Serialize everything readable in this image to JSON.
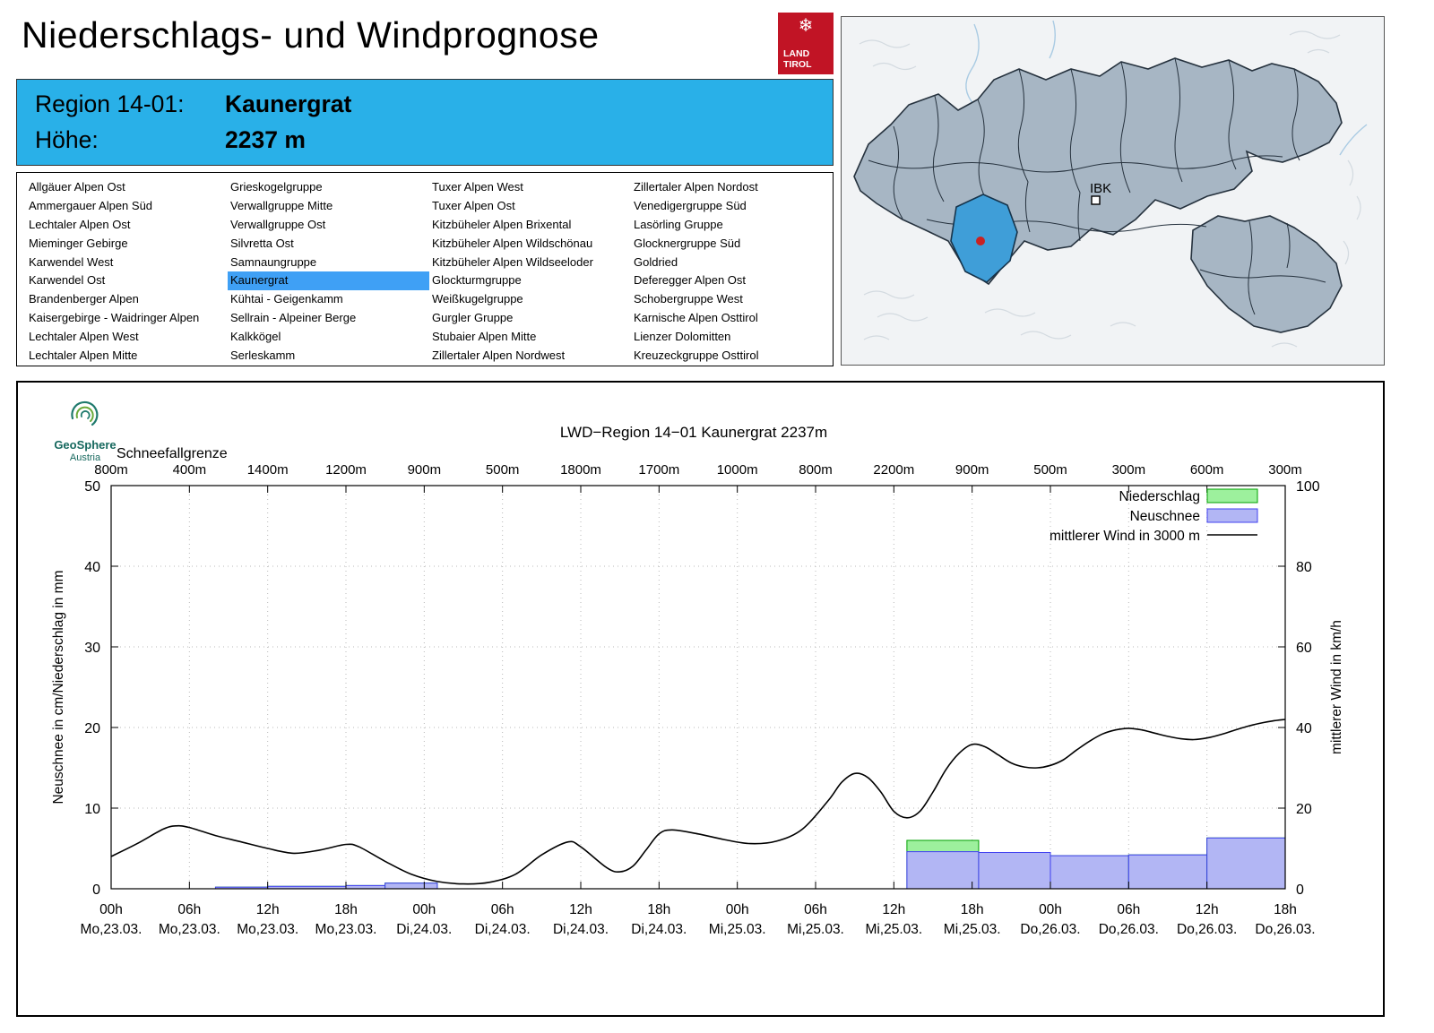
{
  "header": {
    "title": "Niederschlags- und Windprognose",
    "logo_line1": "LAND",
    "logo_line2": "TIROL",
    "logo_color": "#c11425"
  },
  "region_info": {
    "region_label": "Region 14-01:",
    "region_value": "Kaunergrat",
    "elevation_label": "Höhe:",
    "elevation_value": "2237 m",
    "box_color": "#29b0e8"
  },
  "map": {
    "ibk_label": "IBK",
    "selected_region_color": "#3f9ed8",
    "region_fill": "#a7b6c4",
    "marker_color": "#c92222"
  },
  "geosphere": {
    "name": "GeoSphere",
    "country": "Austria"
  },
  "region_list": {
    "selected": "Kaunergrat",
    "selected_color": "#3fa0f5",
    "columns": [
      [
        "Allgäuer Alpen Ost",
        "Ammergauer Alpen Süd",
        "Lechtaler Alpen Ost",
        "Mieminger Gebirge",
        "Karwendel West",
        "Karwendel Ost",
        "Brandenberger Alpen",
        "Kaisergebirge - Waidringer Alpen",
        "Lechtaler Alpen West",
        "Lechtaler Alpen Mitte"
      ],
      [
        "Grieskogelgruppe",
        "Verwallgruppe Mitte",
        "Verwallgruppe Ost",
        "Silvretta Ost",
        "Samnaungruppe",
        "Kaunergrat",
        "Kühtai - Geigenkamm",
        "Sellrain - Alpeiner Berge",
        "Kalkkögel",
        "Serleskamm"
      ],
      [
        "Tuxer Alpen West",
        "Tuxer Alpen Ost",
        "Kitzbüheler Alpen Brixental",
        "Kitzbüheler Alpen Wildschönau",
        "Kitzbüheler Alpen Wildseeloder",
        "Glockturmgruppe",
        "Weißkugelgruppe",
        "Gurgler Gruppe",
        "Stubaier Alpen Mitte",
        "Zillertaler Alpen Nordwest"
      ],
      [
        "Zillertaler Alpen Nordost",
        "Venedigergruppe Süd",
        "Lasörling Gruppe",
        "Glocknergruppe Süd",
        "Goldried",
        "Deferegger Alpen Ost",
        "Schobergruppe West",
        "Karnische Alpen Osttirol",
        "Lienzer Dolomitten",
        "Kreuzeckgruppe Osttirol"
      ]
    ]
  },
  "chart_data": {
    "type": "mixed",
    "title": "LWD−Region 14−01 Kaunergrat 2237m",
    "grid": true,
    "x_hours_range": [
      0,
      90
    ],
    "x_ticks": [
      {
        "time": "00h",
        "date": "Mo,23.03."
      },
      {
        "time": "06h",
        "date": "Mo,23.03."
      },
      {
        "time": "12h",
        "date": "Mo,23.03."
      },
      {
        "time": "18h",
        "date": "Mo,23.03."
      },
      {
        "time": "00h",
        "date": "Di,24.03."
      },
      {
        "time": "06h",
        "date": "Di,24.03."
      },
      {
        "time": "12h",
        "date": "Di,24.03."
      },
      {
        "time": "18h",
        "date": "Di,24.03."
      },
      {
        "time": "00h",
        "date": "Mi,25.03."
      },
      {
        "time": "06h",
        "date": "Mi,25.03."
      },
      {
        "time": "12h",
        "date": "Mi,25.03."
      },
      {
        "time": "18h",
        "date": "Mi,25.03."
      },
      {
        "time": "00h",
        "date": "Do,26.03."
      },
      {
        "time": "06h",
        "date": "Do,26.03."
      },
      {
        "time": "12h",
        "date": "Do,26.03."
      },
      {
        "time": "18h",
        "date": "Do,26.03."
      }
    ],
    "top_axis": {
      "label": "Schneefallgrenze",
      "values": [
        "800m",
        "400m",
        "1400m",
        "1200m",
        "900m",
        "500m",
        "1800m",
        "1700m",
        "1000m",
        "800m",
        "2200m",
        "900m",
        "500m",
        "300m",
        "600m",
        "300m"
      ]
    },
    "axes": {
      "left": {
        "label": "Neuschnee in cm/Niederschlag in mm",
        "min": 0,
        "max": 50,
        "step": 10
      },
      "right": {
        "label": "mittlerer Wind in km/h",
        "min": 0,
        "max": 100,
        "step": 20
      }
    },
    "legend": [
      {
        "label": "Niederschlag",
        "type": "box",
        "fill": "#9df09d",
        "stroke": "#00a000"
      },
      {
        "label": "Neuschnee",
        "type": "box",
        "fill": "#b2b6f4",
        "stroke": "#4040f0"
      },
      {
        "label": "mittlerer Wind in 3000 m",
        "type": "line",
        "stroke": "#000000"
      }
    ],
    "bars": [
      {
        "from_h": 8,
        "to_h": 12,
        "niederschlag_mm": 0.2,
        "neuschnee_cm": 0.2
      },
      {
        "from_h": 12,
        "to_h": 18,
        "niederschlag_mm": 0.3,
        "neuschnee_cm": 0.3
      },
      {
        "from_h": 18,
        "to_h": 21,
        "niederschlag_mm": 0.4,
        "neuschnee_cm": 0.4
      },
      {
        "from_h": 21,
        "to_h": 25,
        "niederschlag_mm": 0.7,
        "neuschnee_cm": 0.7
      },
      {
        "from_h": 61,
        "to_h": 66.5,
        "niederschlag_mm": 6.0,
        "neuschnee_cm": 4.6
      },
      {
        "from_h": 66.5,
        "to_h": 72,
        "niederschlag_mm": 4.5,
        "neuschnee_cm": 4.5
      },
      {
        "from_h": 72,
        "to_h": 78,
        "niederschlag_mm": 4.1,
        "neuschnee_cm": 4.1
      },
      {
        "from_h": 78,
        "to_h": 84,
        "niederschlag_mm": 4.2,
        "neuschnee_cm": 4.2
      },
      {
        "from_h": 84,
        "to_h": 90,
        "niederschlag_mm": 6.3,
        "neuschnee_cm": 6.3
      }
    ],
    "wind_kmh": {
      "name": "mittlerer Wind in 3000 m",
      "points": [
        [
          0,
          8.0
        ],
        [
          2,
          11.2
        ],
        [
          4,
          14.8
        ],
        [
          5,
          15.6
        ],
        [
          6,
          15.2
        ],
        [
          8,
          13.2
        ],
        [
          10,
          11.6
        ],
        [
          12,
          10.0
        ],
        [
          14,
          8.8
        ],
        [
          16,
          9.6
        ],
        [
          18,
          11.0
        ],
        [
          19,
          10.4
        ],
        [
          21,
          6.8
        ],
        [
          23,
          3.6
        ],
        [
          25,
          1.8
        ],
        [
          27,
          1.2
        ],
        [
          29,
          1.6
        ],
        [
          31,
          3.6
        ],
        [
          33,
          8.4
        ],
        [
          35,
          11.6
        ],
        [
          36,
          10.4
        ],
        [
          38,
          5.2
        ],
        [
          39,
          4.2
        ],
        [
          40,
          5.6
        ],
        [
          41,
          9.6
        ],
        [
          42,
          13.6
        ],
        [
          43,
          14.6
        ],
        [
          45,
          13.6
        ],
        [
          47,
          12.2
        ],
        [
          49,
          11.2
        ],
        [
          51,
          11.8
        ],
        [
          53,
          14.8
        ],
        [
          55,
          22.0
        ],
        [
          56,
          26.4
        ],
        [
          57,
          28.6
        ],
        [
          58,
          27.6
        ],
        [
          59,
          24.0
        ],
        [
          60,
          19.2
        ],
        [
          61,
          17.6
        ],
        [
          62,
          19.2
        ],
        [
          63,
          24.0
        ],
        [
          64,
          29.6
        ],
        [
          65,
          33.6
        ],
        [
          66,
          35.8
        ],
        [
          67,
          35.2
        ],
        [
          68,
          33.2
        ],
        [
          69,
          31.2
        ],
        [
          70,
          30.2
        ],
        [
          71,
          30.0
        ],
        [
          72,
          30.6
        ],
        [
          73,
          32.0
        ],
        [
          74,
          34.4
        ],
        [
          75,
          36.6
        ],
        [
          76,
          38.4
        ],
        [
          77,
          39.4
        ],
        [
          78,
          39.8
        ],
        [
          79,
          39.4
        ],
        [
          80,
          38.6
        ],
        [
          81,
          37.8
        ],
        [
          82,
          37.2
        ],
        [
          83,
          37.0
        ],
        [
          84,
          37.4
        ],
        [
          85,
          38.2
        ],
        [
          86,
          39.2
        ],
        [
          87,
          40.2
        ],
        [
          88,
          41.0
        ],
        [
          89,
          41.6
        ],
        [
          90,
          42.0
        ]
      ]
    }
  }
}
